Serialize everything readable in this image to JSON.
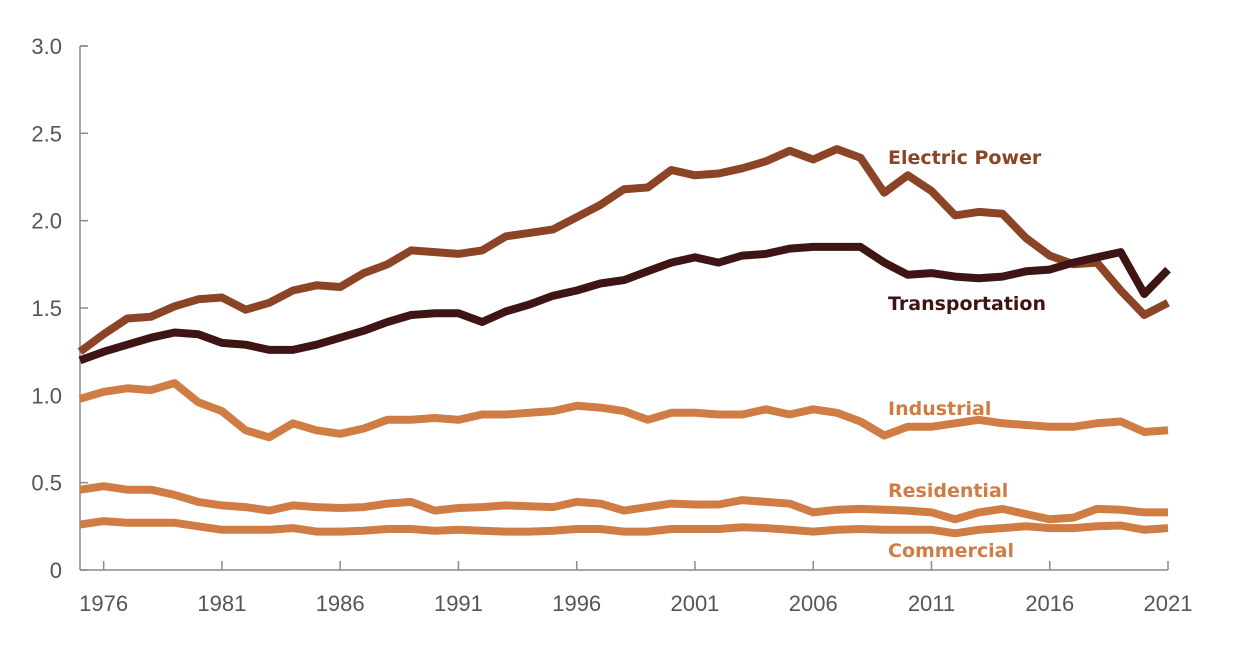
{
  "chart_data": {
    "type": "line",
    "title": "",
    "xlabel": "",
    "ylabel": "",
    "x": [
      1975,
      1976,
      1977,
      1978,
      1979,
      1980,
      1981,
      1982,
      1983,
      1984,
      1985,
      1986,
      1987,
      1988,
      1989,
      1990,
      1991,
      1992,
      1993,
      1994,
      1995,
      1996,
      1997,
      1998,
      1999,
      2000,
      2001,
      2002,
      2003,
      2004,
      2005,
      2006,
      2007,
      2008,
      2009,
      2010,
      2011,
      2012,
      2013,
      2014,
      2015,
      2016,
      2017,
      2018,
      2019,
      2020,
      2021
    ],
    "xlim": [
      1975,
      2021
    ],
    "ylim": [
      0,
      3.0
    ],
    "x_ticks": [
      1976,
      1981,
      1986,
      1991,
      1996,
      2001,
      2006,
      2011,
      2016,
      2021
    ],
    "x_tick_labels": [
      "1976",
      "1981",
      "1986",
      "1991",
      "1996",
      "2001",
      "2006",
      "2011",
      "2016",
      "2021"
    ],
    "y_ticks": [
      0,
      0.5,
      1.0,
      1.5,
      2.0,
      2.5,
      3.0
    ],
    "y_tick_labels": [
      "0",
      "0.5",
      "1.0",
      "1.5",
      "2.0",
      "2.5",
      "3.0"
    ],
    "grid": false,
    "legend": "inline-labels-right",
    "series": [
      {
        "name": "Electric Power",
        "color": "#8B4526",
        "values": [
          1.25,
          1.35,
          1.44,
          1.45,
          1.51,
          1.55,
          1.56,
          1.49,
          1.53,
          1.6,
          1.63,
          1.62,
          1.7,
          1.75,
          1.83,
          1.82,
          1.81,
          1.83,
          1.91,
          1.93,
          1.95,
          2.02,
          2.09,
          2.18,
          2.19,
          2.29,
          2.26,
          2.27,
          2.3,
          2.34,
          2.4,
          2.35,
          2.41,
          2.36,
          2.16,
          2.26,
          2.17,
          2.03,
          2.05,
          2.04,
          1.9,
          1.8,
          1.75,
          1.76,
          1.6,
          1.46,
          1.53
        ]
      },
      {
        "name": "Transportation",
        "color": "#3E1414",
        "values": [
          1.2,
          1.25,
          1.29,
          1.33,
          1.36,
          1.35,
          1.3,
          1.29,
          1.26,
          1.26,
          1.29,
          1.33,
          1.37,
          1.42,
          1.46,
          1.47,
          1.47,
          1.42,
          1.48,
          1.52,
          1.57,
          1.6,
          1.64,
          1.66,
          1.71,
          1.76,
          1.79,
          1.76,
          1.8,
          1.81,
          1.84,
          1.85,
          1.85,
          1.85,
          1.76,
          1.69,
          1.7,
          1.68,
          1.67,
          1.68,
          1.71,
          1.72,
          1.76,
          1.79,
          1.82,
          1.58,
          1.72
        ]
      },
      {
        "name": "Industrial",
        "color": "#CF7D45",
        "values": [
          0.98,
          1.02,
          1.04,
          1.03,
          1.07,
          0.96,
          0.91,
          0.8,
          0.76,
          0.84,
          0.8,
          0.78,
          0.81,
          0.86,
          0.86,
          0.87,
          0.86,
          0.89,
          0.89,
          0.9,
          0.91,
          0.94,
          0.93,
          0.91,
          0.86,
          0.9,
          0.9,
          0.89,
          0.89,
          0.92,
          0.89,
          0.92,
          0.9,
          0.85,
          0.77,
          0.82,
          0.82,
          0.84,
          0.86,
          0.84,
          0.83,
          0.82,
          0.82,
          0.84,
          0.85,
          0.79,
          0.8
        ]
      },
      {
        "name": "Residential",
        "color": "#CF7D45",
        "values": [
          0.46,
          0.48,
          0.46,
          0.46,
          0.43,
          0.39,
          0.37,
          0.36,
          0.34,
          0.37,
          0.36,
          0.355,
          0.36,
          0.38,
          0.39,
          0.34,
          0.355,
          0.36,
          0.37,
          0.365,
          0.36,
          0.39,
          0.38,
          0.34,
          0.36,
          0.38,
          0.375,
          0.375,
          0.4,
          0.39,
          0.38,
          0.33,
          0.345,
          0.35,
          0.345,
          0.34,
          0.33,
          0.29,
          0.33,
          0.35,
          0.32,
          0.29,
          0.3,
          0.35,
          0.345,
          0.33,
          0.33
        ]
      },
      {
        "name": "Commercial",
        "color": "#CF7D45",
        "values": [
          0.26,
          0.28,
          0.27,
          0.27,
          0.27,
          0.25,
          0.23,
          0.23,
          0.23,
          0.24,
          0.22,
          0.22,
          0.225,
          0.235,
          0.235,
          0.225,
          0.23,
          0.225,
          0.22,
          0.22,
          0.225,
          0.235,
          0.235,
          0.22,
          0.22,
          0.235,
          0.235,
          0.235,
          0.245,
          0.24,
          0.23,
          0.22,
          0.23,
          0.235,
          0.23,
          0.23,
          0.23,
          0.21,
          0.23,
          0.24,
          0.25,
          0.24,
          0.24,
          0.25,
          0.255,
          0.23,
          0.24
        ]
      }
    ]
  }
}
